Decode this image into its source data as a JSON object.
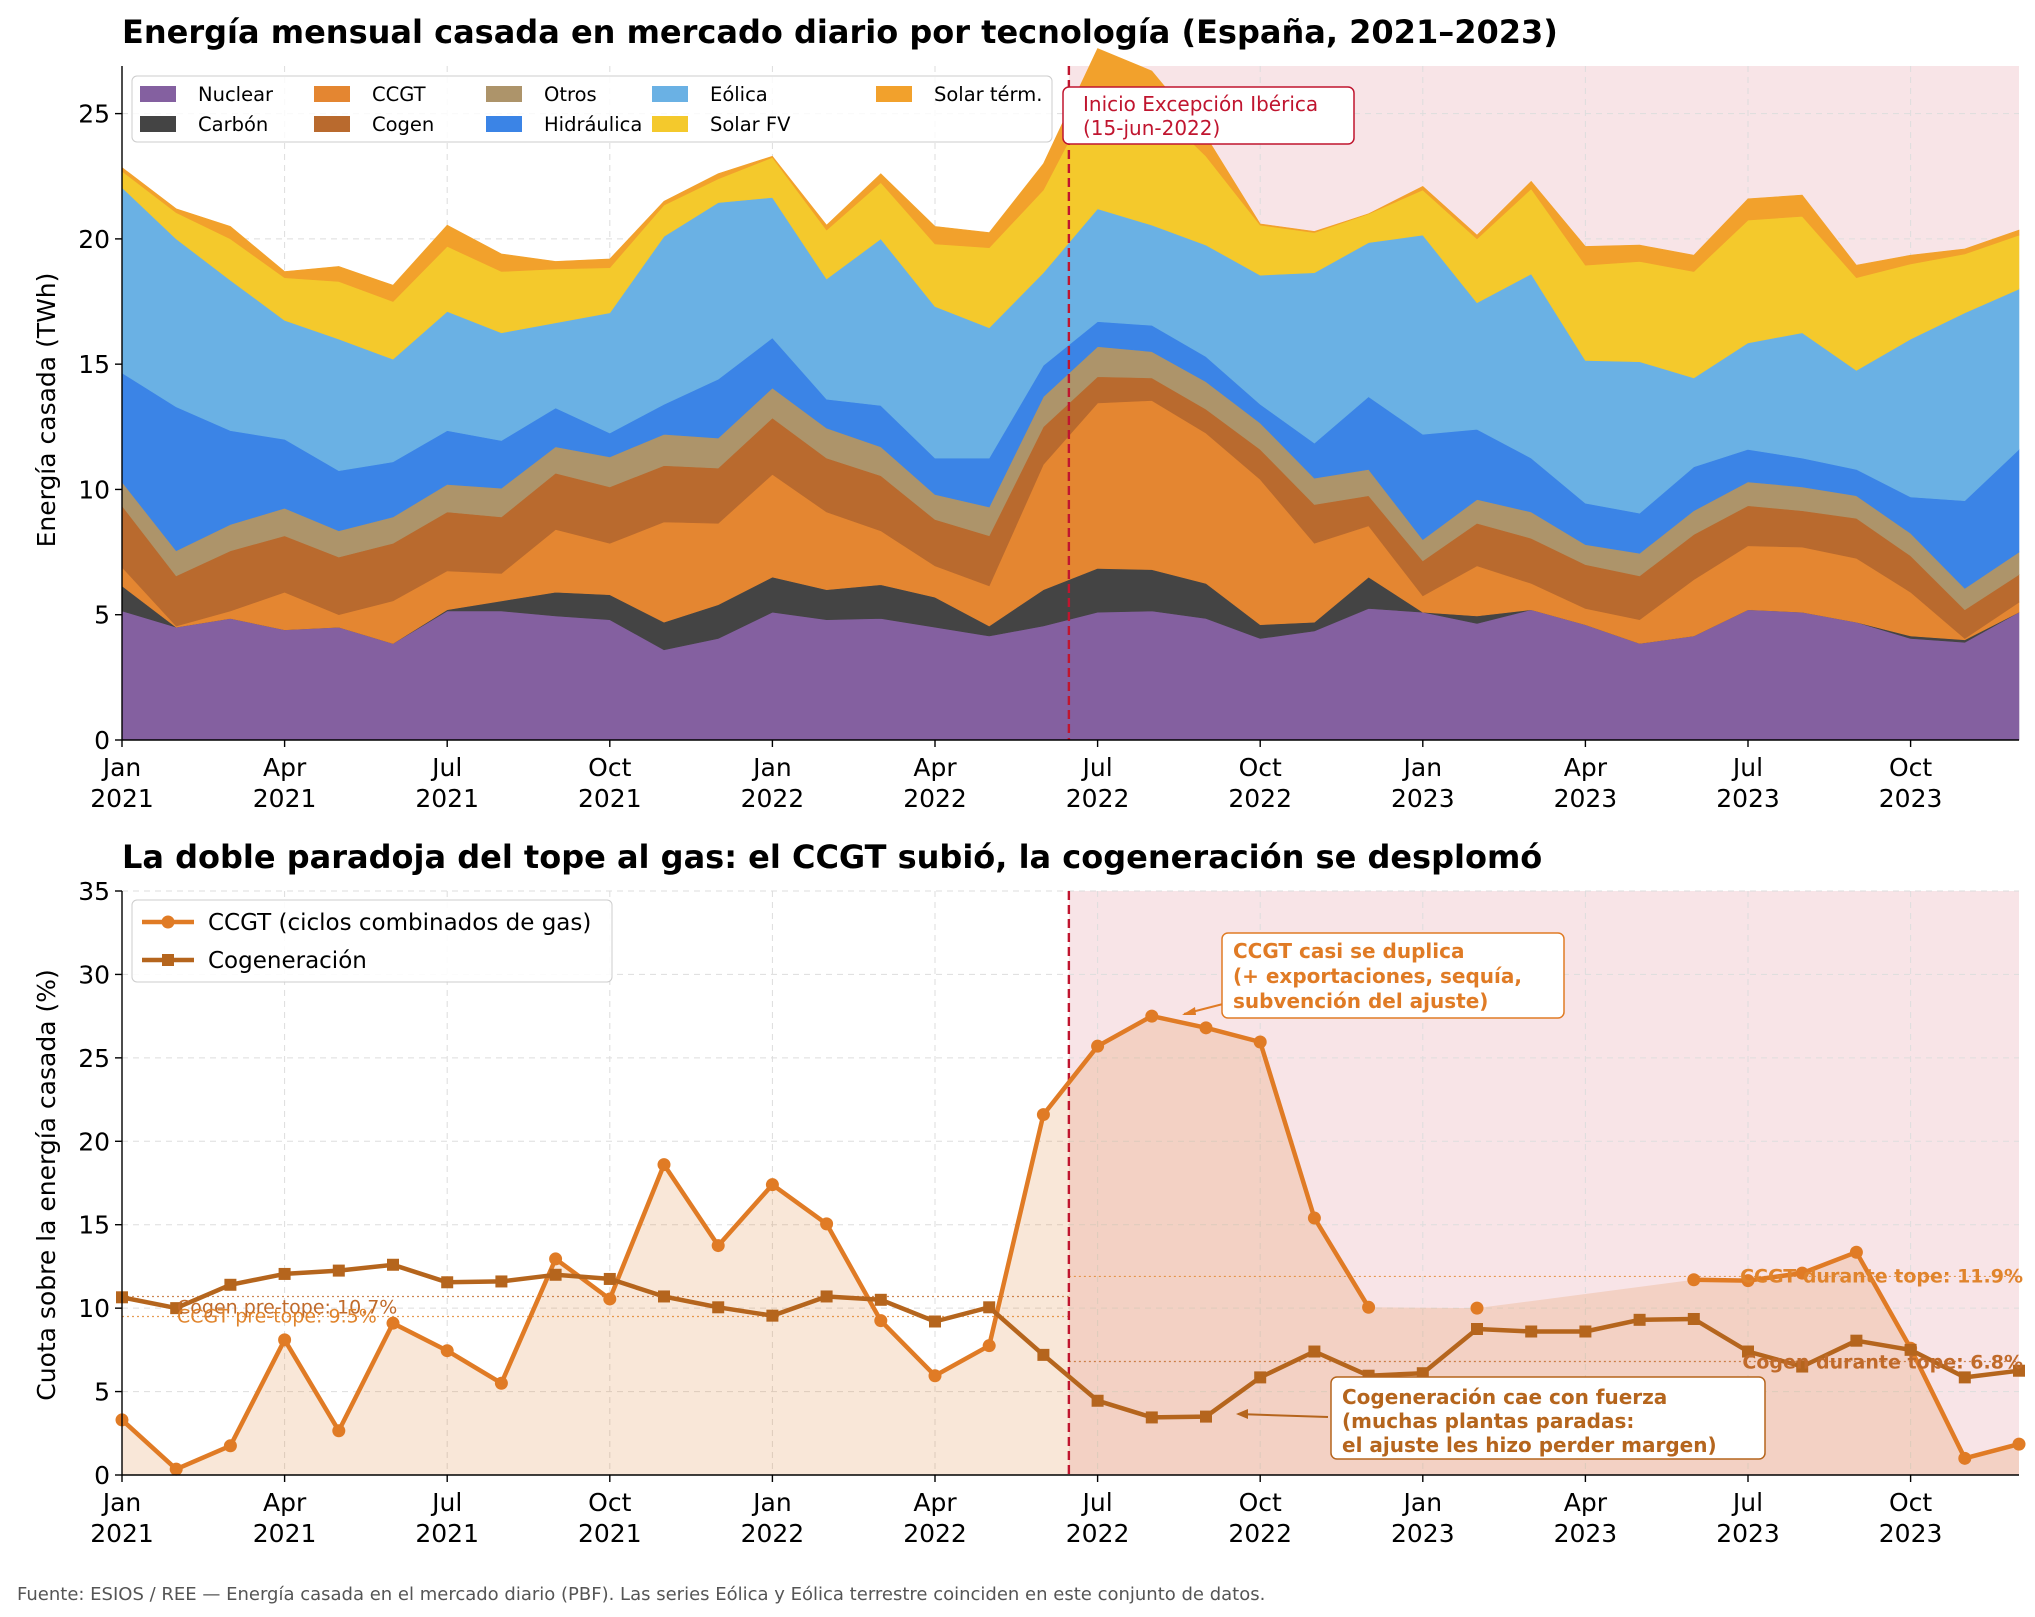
{
  "footer": {
    "source": "Fuente: ESIOS / REE — Energía casada en el mercado diario (PBF). Las series Eólica y Eólica terrestre coinciden en este conjunto de datos."
  },
  "chart_data": [
    {
      "type": "area",
      "title": "Energía mensual casada en mercado diario por tecnología (España, 2021–2023)",
      "ylabel": "Energía casada (TWh)",
      "xlabel": "",
      "stacked": true,
      "ylim": [
        0,
        26.9
      ],
      "yticks": [
        "0",
        "5",
        "10",
        "15",
        "20",
        "25"
      ],
      "xticks": [
        {
          "t": 0,
          "label": [
            "Jan",
            "2021"
          ]
        },
        {
          "t": 3,
          "label": [
            "Apr",
            "2021"
          ]
        },
        {
          "t": 6,
          "label": [
            "Jul",
            "2021"
          ]
        },
        {
          "t": 9,
          "label": [
            "Oct",
            "2021"
          ]
        },
        {
          "t": 12,
          "label": [
            "Jan",
            "2022"
          ]
        },
        {
          "t": 15,
          "label": [
            "Apr",
            "2022"
          ]
        },
        {
          "t": 18,
          "label": [
            "Jul",
            "2022"
          ]
        },
        {
          "t": 21,
          "label": [
            "Oct",
            "2022"
          ]
        },
        {
          "t": 24,
          "label": [
            "Jan",
            "2023"
          ]
        },
        {
          "t": 27,
          "label": [
            "Apr",
            "2023"
          ]
        },
        {
          "t": 30,
          "label": [
            "Jul",
            "2023"
          ]
        },
        {
          "t": 33,
          "label": [
            "Oct",
            "2023"
          ]
        }
      ],
      "grid": true,
      "legend_position": "top-left",
      "x": [
        "2021-01",
        "2021-02",
        "2021-03",
        "2021-04",
        "2021-05",
        "2021-06",
        "2021-07",
        "2021-08",
        "2021-09",
        "2021-10",
        "2021-11",
        "2021-12",
        "2022-01",
        "2022-02",
        "2022-03",
        "2022-04",
        "2022-05",
        "2022-06",
        "2022-07",
        "2022-08",
        "2022-09",
        "2022-10",
        "2022-11",
        "2022-12",
        "2023-01",
        "2023-02",
        "2023-03",
        "2023-04",
        "2023-05",
        "2023-06",
        "2023-07",
        "2023-08",
        "2023-09",
        "2023-10",
        "2023-11",
        "2023-12"
      ],
      "series": [
        {
          "name": "Nuclear",
          "color": "#8460a0",
          "values": [
            5.15,
            4.5,
            4.85,
            4.4,
            4.5,
            3.85,
            5.15,
            5.15,
            4.95,
            4.8,
            3.6,
            4.05,
            5.1,
            4.8,
            4.85,
            4.5,
            4.15,
            4.55,
            5.1,
            5.15,
            4.85,
            4.05,
            4.35,
            5.25,
            5.1,
            4.65,
            5.2,
            4.6,
            3.85,
            4.15,
            5.2,
            5.1,
            4.7,
            4.05,
            3.9,
            5.1
          ]
        },
        {
          "name": "Carbón",
          "color": "#444444",
          "values": [
            1.0,
            0.0,
            0.0,
            0.0,
            0.0,
            0.0,
            0.05,
            0.4,
            0.95,
            1.0,
            1.1,
            1.35,
            1.4,
            1.2,
            1.35,
            1.2,
            0.4,
            1.45,
            1.75,
            1.65,
            1.4,
            0.55,
            0.35,
            1.25,
            0.0,
            0.3,
            0.0,
            0.0,
            0.0,
            0.0,
            0.0,
            0.0,
            0.0,
            0.1,
            0.1,
            0.0
          ]
        },
        {
          "name": "CCGT",
          "color": "#e48631",
          "values": [
            0.75,
            0.05,
            0.3,
            1.5,
            0.5,
            1.7,
            1.55,
            1.1,
            2.5,
            2.05,
            4.0,
            3.25,
            4.1,
            3.1,
            2.15,
            1.25,
            1.6,
            5.0,
            6.6,
            6.75,
            6.0,
            5.8,
            3.15,
            2.05,
            0.65,
            2.0,
            1.05,
            0.65,
            0.95,
            2.25,
            2.55,
            2.6,
            2.55,
            1.75,
            0.05,
            0.4
          ]
        },
        {
          "name": "Cogen",
          "color": "#b96a2e",
          "values": [
            2.45,
            2.0,
            2.4,
            2.25,
            2.3,
            2.3,
            2.35,
            2.25,
            2.25,
            2.25,
            2.25,
            2.2,
            2.25,
            2.15,
            2.2,
            1.85,
            2.0,
            1.5,
            1.05,
            0.9,
            0.95,
            1.2,
            1.55,
            1.2,
            1.4,
            1.7,
            1.8,
            1.75,
            1.75,
            1.8,
            1.6,
            1.45,
            1.6,
            1.45,
            1.15,
            1.1
          ]
        },
        {
          "name": "Otros",
          "color": "#ad946a",
          "values": [
            0.95,
            1.0,
            1.05,
            1.1,
            1.05,
            1.05,
            1.1,
            1.15,
            1.05,
            1.2,
            1.25,
            1.2,
            1.2,
            1.2,
            1.15,
            1.0,
            1.15,
            1.2,
            1.2,
            1.05,
            1.1,
            1.05,
            1.05,
            1.05,
            0.85,
            0.95,
            1.05,
            0.8,
            0.9,
            0.95,
            0.95,
            0.95,
            0.9,
            0.9,
            0.85,
            0.9
          ]
        },
        {
          "name": "Hidráulica",
          "color": "#3b84e6",
          "values": [
            4.35,
            5.75,
            3.75,
            2.75,
            2.4,
            2.2,
            2.15,
            1.9,
            1.55,
            0.95,
            1.2,
            2.35,
            2.0,
            1.15,
            1.65,
            1.45,
            1.95,
            1.25,
            1.0,
            1.05,
            1.0,
            0.75,
            1.4,
            2.9,
            4.2,
            2.8,
            2.15,
            1.65,
            1.6,
            1.75,
            1.3,
            1.15,
            1.05,
            1.45,
            3.5,
            4.1
          ]
        },
        {
          "name": "Eólica",
          "color": "#6ab1e4",
          "values": [
            7.4,
            6.7,
            6.0,
            4.75,
            5.25,
            4.1,
            4.75,
            4.3,
            3.4,
            4.8,
            6.7,
            7.05,
            5.6,
            4.8,
            6.65,
            6.05,
            5.2,
            3.7,
            4.5,
            4.0,
            4.45,
            5.15,
            6.8,
            6.15,
            7.95,
            5.05,
            7.35,
            5.7,
            6.05,
            3.55,
            4.25,
            5.0,
            3.95,
            6.3,
            7.5,
            6.4
          ]
        },
        {
          "name": "Solar FV",
          "color": "#f4c92c",
          "values": [
            0.65,
            1.05,
            1.65,
            1.7,
            2.3,
            2.3,
            2.6,
            2.45,
            2.15,
            1.8,
            1.25,
            0.95,
            1.6,
            1.95,
            2.25,
            2.5,
            3.2,
            3.3,
            4.9,
            4.85,
            3.55,
            2.0,
            1.6,
            1.15,
            1.8,
            2.55,
            3.4,
            3.8,
            4.0,
            4.25,
            4.9,
            4.65,
            3.7,
            3.0,
            2.35,
            2.15
          ]
        },
        {
          "name": "Solar térm.",
          "color": "#f2a12c",
          "values": [
            0.15,
            0.15,
            0.5,
            0.25,
            0.6,
            0.65,
            0.85,
            0.7,
            0.3,
            0.35,
            0.15,
            0.2,
            0.05,
            0.2,
            0.35,
            0.7,
            0.6,
            1.05,
            1.5,
            1.3,
            0.8,
            0.05,
            0.05,
            0.0,
            0.15,
            0.15,
            0.3,
            0.75,
            0.65,
            0.65,
            0.85,
            0.85,
            0.5,
            0.35,
            0.2,
            0.2
          ]
        }
      ],
      "annotations": [
        {
          "text": [
            "Inicio Excepción Ibérica",
            "(15-jun-2022)"
          ],
          "color": "#c0152f"
        }
      ],
      "vline": {
        "t": 17.47,
        "color": "#c0152f"
      },
      "shaded_span": {
        "from": 17.47,
        "to": 35,
        "color": "#f8e4e7"
      }
    },
    {
      "type": "line",
      "title": "La doble paradoja del tope al gas: el CCGT subió, la cogeneración se desplomó",
      "ylabel": "Cuota sobre la energía casada (%)",
      "xlabel": "",
      "ylim": [
        0,
        35
      ],
      "yticks": [
        "0",
        "5",
        "10",
        "15",
        "20",
        "25",
        "30",
        "35"
      ],
      "grid": true,
      "legend_position": "top-left",
      "series": [
        {
          "name": "CCGT (ciclos combinados de gas)",
          "color": "#e07b25",
          "marker": "circle",
          "values": [
            3.3,
            0.35,
            1.75,
            8.1,
            2.65,
            9.1,
            7.45,
            5.5,
            12.95,
            10.55,
            18.6,
            13.75,
            17.4,
            15.05,
            9.25,
            5.95,
            7.75,
            21.6,
            25.7,
            27.5,
            26.8,
            25.95,
            15.4,
            10.05,
            null,
            10.0,
            null,
            null,
            null,
            11.7,
            11.65,
            12.1,
            13.35,
            7.6,
            1.0,
            1.85
          ]
        },
        {
          "name": "Cogeneración",
          "color": "#b5651d",
          "marker": "square",
          "values": [
            10.65,
            10.0,
            11.4,
            12.05,
            12.25,
            12.6,
            11.55,
            11.6,
            12.0,
            11.75,
            10.7,
            10.05,
            9.55,
            10.7,
            10.5,
            9.2,
            10.05,
            7.2,
            4.45,
            3.45,
            3.5,
            5.85,
            7.4,
            5.95,
            6.1,
            8.75,
            8.6,
            8.6,
            9.3,
            9.35,
            7.4,
            6.5,
            8.05,
            7.5,
            5.85,
            6.25
          ]
        }
      ],
      "reference_lines": [
        {
          "label": "Cogen pre-tope: 10.7%",
          "value": 10.7,
          "color": "#c06a2a"
        },
        {
          "label": "CCGT pre-tope: 9.5%",
          "value": 9.5,
          "color": "#e0842c"
        },
        {
          "label": "CCGT durante tope: 11.9%",
          "value": 11.9,
          "color": "#e0842c"
        },
        {
          "label": "Cogen durante tope: 6.8%",
          "value": 6.8,
          "color": "#c06a2a"
        }
      ],
      "annotations": [
        {
          "text": [
            "CCGT casi se duplica",
            "(+ exportaciones, sequía,",
            "subvención del ajuste)"
          ],
          "color": "#e07b25"
        },
        {
          "text": [
            "Cogeneración cae con fuerza",
            "(muchas plantas paradas:",
            "el ajuste les hizo perder margen)"
          ],
          "color": "#b5651d"
        }
      ],
      "vline": {
        "t": 17.47,
        "color": "#c0152f"
      },
      "shaded_span": {
        "from": 17.47,
        "to": 35,
        "color": "#f8e4e7"
      }
    }
  ]
}
